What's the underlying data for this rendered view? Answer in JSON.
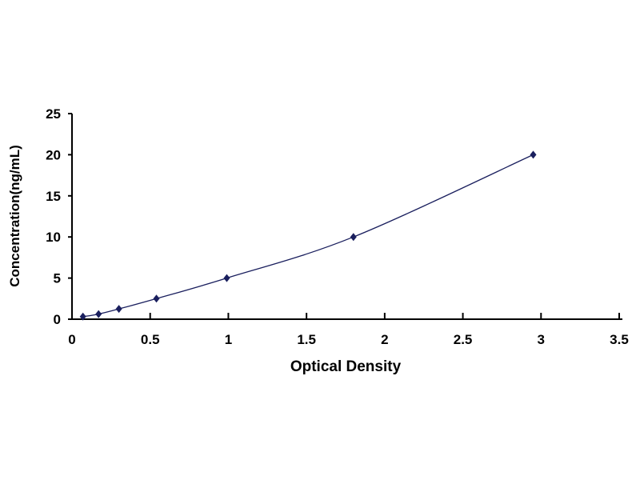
{
  "chart_data": {
    "type": "line",
    "title": "",
    "xlabel": "Optical Density",
    "ylabel": "Concentration(ng/mL)",
    "xlim": [
      0,
      3.5
    ],
    "ylim": [
      0,
      25
    ],
    "xticks": [
      "0",
      "0.5",
      "1",
      "1.5",
      "2",
      "2.5",
      "3",
      "3.5"
    ],
    "yticks": [
      "0",
      "5",
      "10",
      "15",
      "20",
      "25"
    ],
    "grid": false,
    "legend": "none",
    "series": [
      {
        "x": [
          0.07,
          0.17,
          0.3,
          0.54,
          0.99,
          1.8,
          2.95
        ],
        "y": [
          0.3125,
          0.625,
          1.25,
          2.5,
          5,
          10,
          20
        ],
        "color": "#1a1f5e",
        "marker": "diamond"
      }
    ]
  }
}
